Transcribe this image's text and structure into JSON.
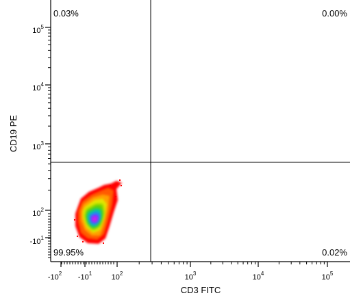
{
  "chart_data": {
    "type": "scatter",
    "subtype": "flow-cytometry-density-quadrant",
    "xlabel": "CD3 FITC",
    "ylabel": "CD19 PE",
    "x_scale": "biexponential",
    "y_scale": "biexponential",
    "x_ticks": [
      {
        "base": "-10",
        "exp": "2"
      },
      {
        "base": "-10",
        "exp": "1"
      },
      {
        "base": "10",
        "exp": "2"
      },
      {
        "base": "10",
        "exp": "3"
      },
      {
        "base": "10",
        "exp": "4"
      },
      {
        "base": "10",
        "exp": "5"
      }
    ],
    "y_ticks": [
      {
        "base": "-10",
        "exp": "1"
      },
      {
        "base": "10",
        "exp": "2"
      },
      {
        "base": "10",
        "exp": "3"
      },
      {
        "base": "10",
        "exp": "4"
      },
      {
        "base": "10",
        "exp": "5"
      }
    ],
    "quadrant_gate": {
      "x": 250,
      "y": 600
    },
    "quadrants": [
      {
        "position": "upper-left",
        "percent": "0.03%"
      },
      {
        "position": "upper-right",
        "percent": "0.00%"
      },
      {
        "position": "lower-left",
        "percent": "99.95%"
      },
      {
        "position": "lower-right",
        "percent": "0.02%"
      }
    ],
    "population": {
      "center": {
        "x": 40,
        "y": 60
      },
      "colormap": [
        "#ff0000",
        "#ff5a00",
        "#ffa000",
        "#e6e600",
        "#64d200",
        "#00c8a0",
        "#2882ff",
        "#8c28ff",
        "#e61ee6"
      ]
    }
  }
}
